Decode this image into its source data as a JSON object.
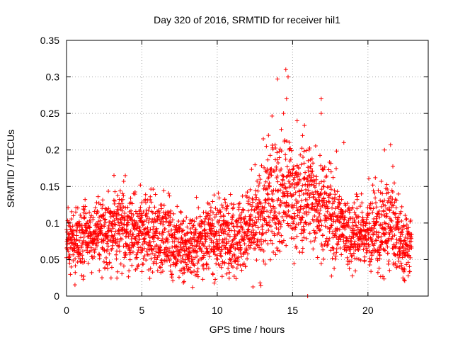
{
  "chart_data": {
    "type": "scatter",
    "title": "Day 320 of 2016, SRMTID for receiver hil1",
    "xlabel": "GPS time / hours",
    "ylabel": "SRMTID / TECUs",
    "xlim": [
      0,
      24
    ],
    "ylim": [
      0,
      0.35
    ],
    "xticks": [
      0,
      5,
      10,
      15,
      20
    ],
    "xtick_labels": [
      "0",
      "5",
      "10",
      "15",
      "20"
    ],
    "yticks": [
      0,
      0.05,
      0.1,
      0.15,
      0.2,
      0.25,
      0.3,
      0.35
    ],
    "ytick_labels": [
      "0",
      "0.05",
      "0.1",
      "0.15",
      "0.2",
      "0.25",
      "0.3",
      "0.35"
    ],
    "grid": true,
    "marker": "+",
    "color": "#ff0000",
    "series": [
      {
        "name": "SRMTID",
        "note": "approximately 2700 points at a regular cadence between 0 and 23 hours; values are a compact description of the dense point cloud",
        "x_start": 0.0,
        "x_end": 22.9,
        "n_points": 2700,
        "envelope": {
          "hours": [
            0.0,
            1.0,
            2.0,
            3.0,
            4.0,
            5.0,
            6.0,
            7.0,
            7.8,
            9.0,
            10.0,
            11.0,
            12.0,
            12.8,
            13.5,
            14.0,
            14.5,
            15.0,
            15.5,
            16.0,
            16.5,
            17.0,
            17.5,
            18.0,
            18.5,
            19.0,
            20.0,
            21.0,
            21.5,
            22.0,
            22.4,
            22.9
          ],
          "median": [
            0.073,
            0.078,
            0.085,
            0.09,
            0.092,
            0.085,
            0.083,
            0.075,
            0.062,
            0.08,
            0.083,
            0.083,
            0.088,
            0.1,
            0.13,
            0.14,
            0.142,
            0.135,
            0.13,
            0.142,
            0.135,
            0.12,
            0.108,
            0.1,
            0.09,
            0.086,
            0.085,
            0.09,
            0.1,
            0.085,
            0.062,
            0.075
          ],
          "spread": [
            0.02,
            0.022,
            0.024,
            0.026,
            0.026,
            0.026,
            0.025,
            0.024,
            0.022,
            0.024,
            0.025,
            0.025,
            0.027,
            0.035,
            0.04,
            0.04,
            0.036,
            0.034,
            0.034,
            0.036,
            0.035,
            0.032,
            0.03,
            0.027,
            0.025,
            0.024,
            0.024,
            0.03,
            0.03,
            0.025,
            0.022,
            0.02
          ]
        },
        "notable_points": [
          {
            "x": 14.0,
            "y": 0.297
          },
          {
            "x": 14.55,
            "y": 0.31
          },
          {
            "x": 14.7,
            "y": 0.3
          },
          {
            "x": 14.6,
            "y": 0.27
          },
          {
            "x": 16.9,
            "y": 0.27
          },
          {
            "x": 13.4,
            "y": 0.22
          },
          {
            "x": 14.4,
            "y": 0.25
          },
          {
            "x": 15.3,
            "y": 0.24
          },
          {
            "x": 16.1,
            "y": 0.2
          },
          {
            "x": 16.9,
            "y": 0.25
          },
          {
            "x": 18.4,
            "y": 0.21
          },
          {
            "x": 21.5,
            "y": 0.207
          },
          {
            "x": 21.1,
            "y": 0.2
          },
          {
            "x": 3.9,
            "y": 0.165
          },
          {
            "x": 4.9,
            "y": 0.152
          },
          {
            "x": 16.0,
            "y": 0.0
          },
          {
            "x": 22.4,
            "y": 0.022
          },
          {
            "x": 1.1,
            "y": 0.023
          },
          {
            "x": 7.8,
            "y": 0.02
          }
        ]
      }
    ]
  }
}
